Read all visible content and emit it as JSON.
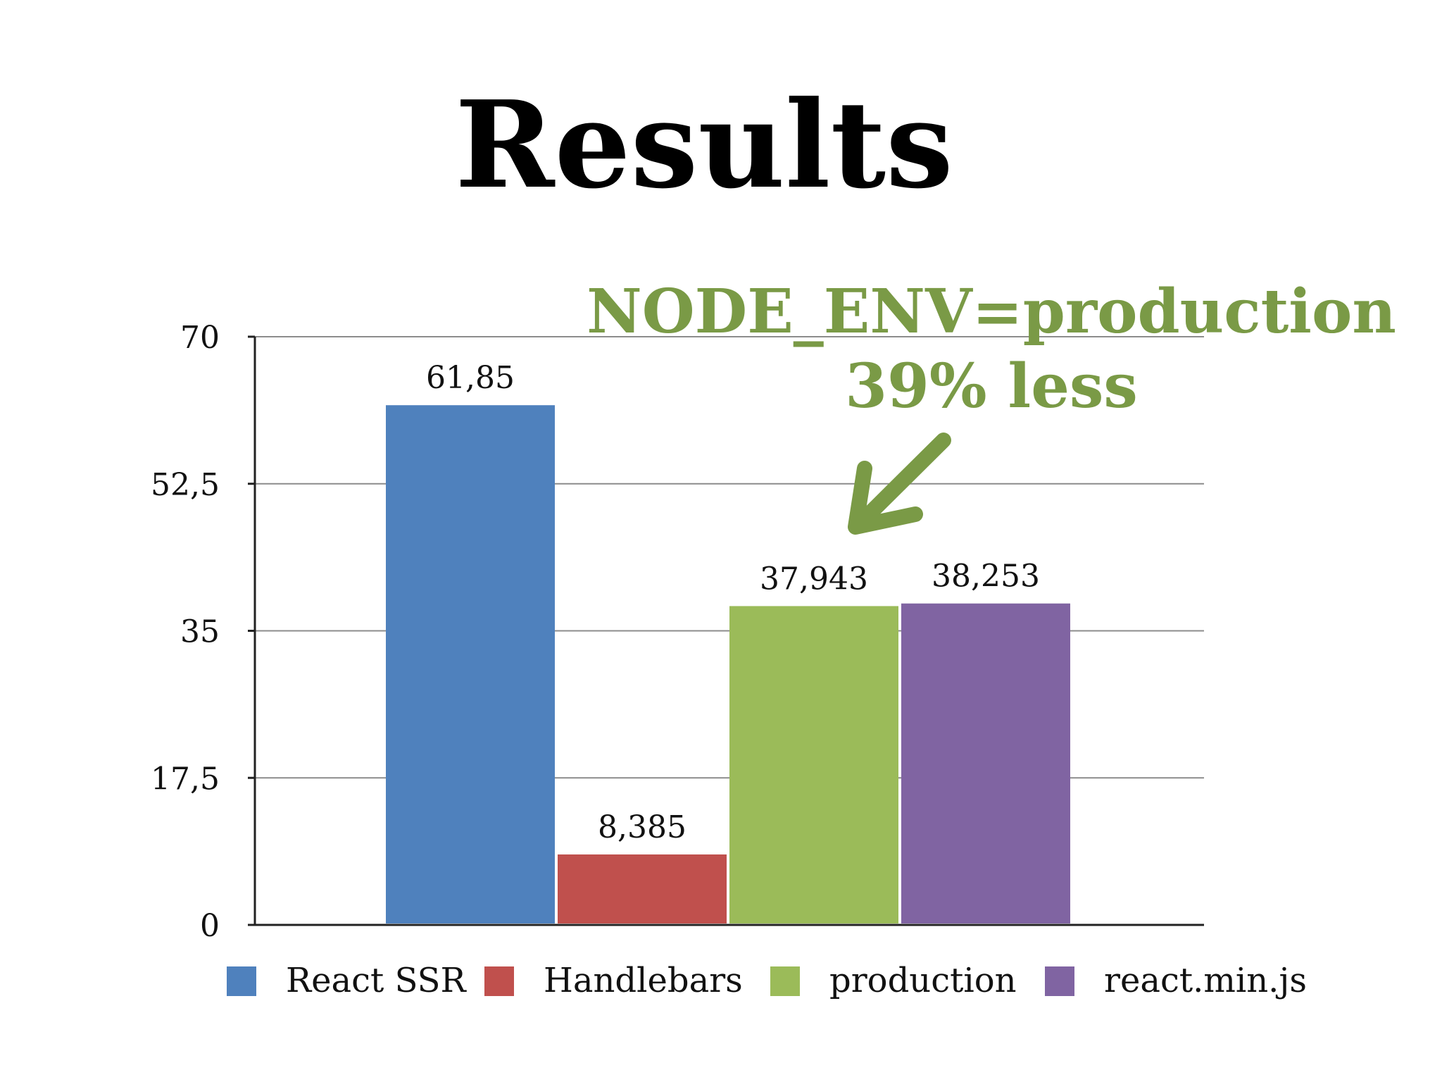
{
  "title": "Results",
  "annotation": {
    "line1": "NODE_ENV=production",
    "line2": "39% less",
    "color": "#7a9a46"
  },
  "chart_data": {
    "type": "bar",
    "title": "Results",
    "xlabel": "",
    "ylabel": "",
    "ylim": [
      0,
      70
    ],
    "yticks": [
      0,
      17.5,
      35,
      52.5,
      70
    ],
    "ytick_labels": [
      "0",
      "17,5",
      "35",
      "52,5",
      "70"
    ],
    "grid": true,
    "legend_position": "bottom",
    "series": [
      {
        "name": "React SSR",
        "values": [
          61.85
        ],
        "label": "61,85",
        "color": "#4f81bd"
      },
      {
        "name": "Handlebars",
        "values": [
          8.385
        ],
        "label": "8,385",
        "color": "#c0504d"
      },
      {
        "name": "production",
        "values": [
          37.943
        ],
        "label": "37,943",
        "color": "#9bbb59"
      },
      {
        "name": "react.min.js",
        "values": [
          38.253
        ],
        "label": "38,253",
        "color": "#8064a2"
      }
    ]
  }
}
